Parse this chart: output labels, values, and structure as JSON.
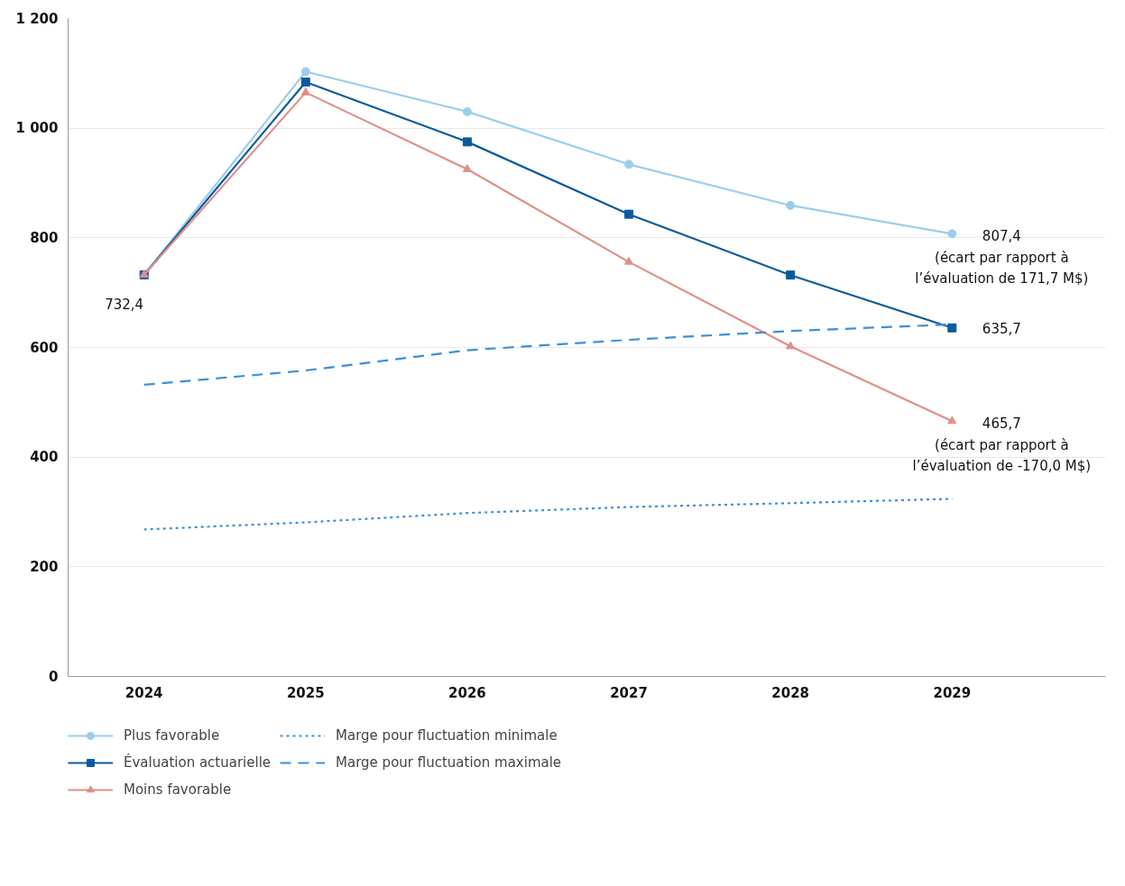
{
  "chart_data": {
    "type": "line",
    "categories": [
      "2024",
      "2025",
      "2026",
      "2027",
      "2028",
      "2029"
    ],
    "series": [
      {
        "name": "Plus favorable",
        "color": "#9dcdea",
        "marker": "circle",
        "line_style": "solid",
        "values": [
          732.4,
          1103,
          1030,
          934,
          859,
          807.4
        ]
      },
      {
        "name": "Évaluation actuarielle",
        "color": "#0b5aa0",
        "marker": "square",
        "line_style": "solid",
        "values": [
          732.4,
          1084,
          975,
          843,
          732,
          635.7
        ]
      },
      {
        "name": "Moins favorable",
        "color": "#e0908a",
        "marker": "triangle",
        "line_style": "solid",
        "values": [
          732.4,
          1065,
          925,
          756,
          602,
          465.7
        ]
      },
      {
        "name": "Marge pour fluctuation minimale",
        "color": "#3f8fd6",
        "marker": "none",
        "line_style": "dotted",
        "values": [
          268,
          281,
          298,
          309,
          316,
          324
        ]
      },
      {
        "name": "Marge pour fluctuation maximale",
        "color": "#3f8fd6",
        "marker": "none",
        "line_style": "dashed",
        "values": [
          532,
          558,
          595,
          614,
          630,
          642
        ]
      }
    ],
    "ylim": [
      0,
      1200
    ],
    "yticks": [
      0,
      200,
      400,
      600,
      800,
      {
        "value": 1000,
        "label": "1 000"
      },
      {
        "value": 1200,
        "label": "1 200"
      }
    ],
    "grid": "y",
    "legend": "bottom",
    "annotations": [
      {
        "text": "732,4",
        "x": "2024",
        "y": 732.4
      },
      {
        "text": "807,4\n(écart par rapport à\nl’évaluation de 171,7 M$)",
        "x": "2029",
        "y": 807.4
      },
      {
        "text": "635,7",
        "x": "2029",
        "y": 635.7
      },
      {
        "text": "465,7\n(écart par rapport à\nl’évaluation de -170,0 M$)",
        "x": "2029",
        "y": 465.7
      }
    ]
  }
}
